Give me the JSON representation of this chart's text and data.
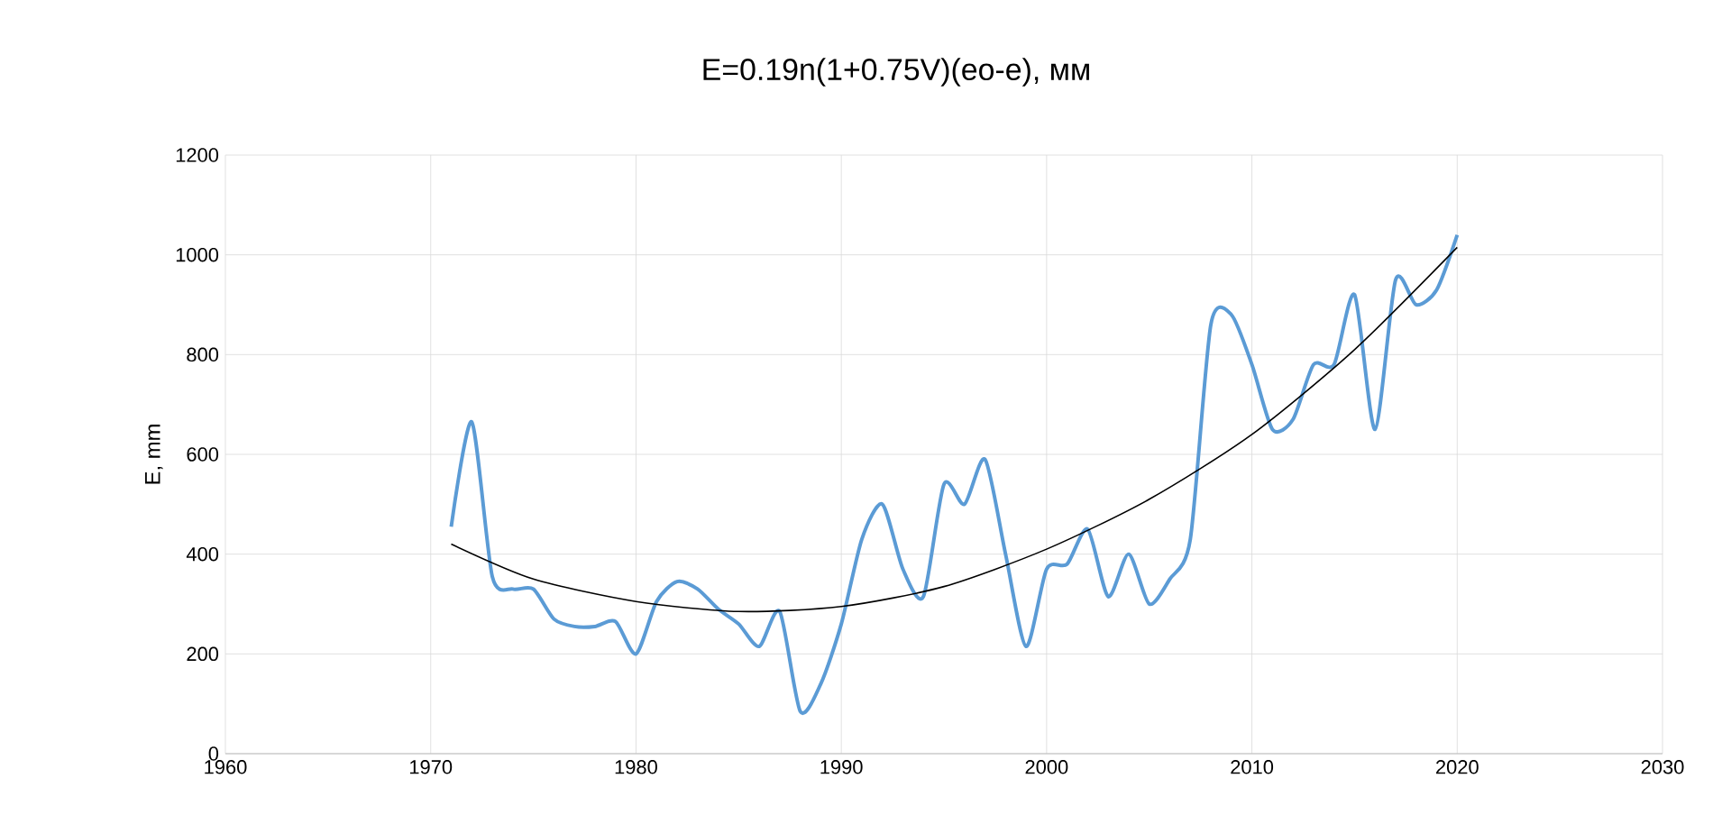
{
  "chart_data": {
    "type": "line",
    "title": "E=0.19n(1+0.75V)(eo-e), мм",
    "ylabel": "E, mm",
    "xlim": [
      1960,
      2030
    ],
    "xticks": [
      1960,
      1970,
      1980,
      1990,
      2000,
      2010,
      2020,
      2030
    ],
    "ylim": [
      0,
      1200
    ],
    "yticks": [
      0,
      200,
      400,
      600,
      800,
      1000,
      1200
    ],
    "grid": true,
    "series": [
      {
        "color": "#5b9bd5",
        "x": [
          1971,
          1972,
          1973,
          1974,
          1975,
          1976,
          1977,
          1978,
          1979,
          1980,
          1981,
          1982,
          1983,
          1984,
          1985,
          1986,
          1987,
          1988,
          1989,
          1990,
          1991,
          1992,
          1993,
          1994,
          1995,
          1996,
          1997,
          1998,
          1999,
          2000,
          2001,
          2002,
          2003,
          2004,
          2005,
          2006,
          2007,
          2008,
          2009,
          2010,
          2011,
          2012,
          2013,
          2014,
          2015,
          2016,
          2017,
          2018,
          2019,
          2020
        ],
        "values": [
          455,
          665,
          355,
          330,
          330,
          270,
          255,
          255,
          265,
          200,
          305,
          345,
          330,
          290,
          260,
          215,
          285,
          85,
          140,
          260,
          430,
          500,
          370,
          315,
          540,
          500,
          590,
          400,
          215,
          370,
          380,
          450,
          315,
          400,
          300,
          350,
          430,
          860,
          880,
          780,
          650,
          670,
          780,
          780,
          920,
          650,
          950,
          900,
          930,
          1040
        ]
      },
      {
        "color": "#000000",
        "x": [
          1971,
          1975,
          1980,
          1985,
          1990,
          1995,
          2000,
          2005,
          2010,
          2015,
          2020
        ],
        "values": [
          420,
          350,
          305,
          285,
          295,
          335,
          410,
          510,
          640,
          810,
          1015
        ]
      }
    ]
  }
}
